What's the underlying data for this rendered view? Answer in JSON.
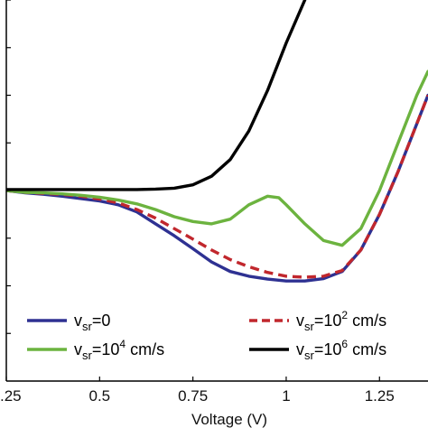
{
  "chart_data": {
    "type": "line",
    "title": "",
    "xlabel": "Voltage (V)",
    "ylabel": "",
    "xlim": [
      0.25,
      1.38
    ],
    "ylim": [
      0,
      8
    ],
    "x_ticks": [
      0.25,
      0.5,
      0.75,
      1,
      1.25
    ],
    "x_tick_labels": [
      ".25",
      "0.5",
      "0.75",
      "1",
      "1.25"
    ],
    "y_ticks": [
      1,
      2,
      3,
      4,
      5,
      6,
      7,
      8
    ],
    "grid": false,
    "legend_position": "bottom",
    "series": [
      {
        "name": "v_sr=0",
        "legend": {
          "base": "v",
          "sub": "sr",
          "rest": "=0",
          "sup": "",
          "unit": ""
        },
        "color": "#2e3192",
        "dash": "solid",
        "x": [
          0.25,
          0.3,
          0.35,
          0.4,
          0.45,
          0.5,
          0.55,
          0.6,
          0.65,
          0.7,
          0.75,
          0.8,
          0.85,
          0.9,
          0.95,
          1.0,
          1.05,
          1.1,
          1.15,
          1.2,
          1.25,
          1.3,
          1.35,
          1.38
        ],
        "y": [
          4.0,
          3.95,
          3.92,
          3.88,
          3.83,
          3.78,
          3.7,
          3.55,
          3.3,
          3.05,
          2.78,
          2.5,
          2.3,
          2.2,
          2.14,
          2.1,
          2.1,
          2.15,
          2.3,
          2.75,
          3.5,
          4.4,
          5.4,
          6.0
        ]
      },
      {
        "name": "v_sr=10^2 cm/s",
        "legend": {
          "base": "v",
          "sub": "sr",
          "rest": "=10",
          "sup": "2",
          "unit": " cm/s"
        },
        "color": "#c1272d",
        "dash": "dashed",
        "x": [
          0.25,
          0.3,
          0.35,
          0.4,
          0.45,
          0.5,
          0.55,
          0.6,
          0.65,
          0.7,
          0.75,
          0.8,
          0.85,
          0.9,
          0.95,
          1.0,
          1.05,
          1.1,
          1.15,
          1.2,
          1.25,
          1.3,
          1.35,
          1.38
        ],
        "y": [
          4.0,
          3.96,
          3.94,
          3.92,
          3.88,
          3.82,
          3.74,
          3.6,
          3.42,
          3.2,
          2.98,
          2.75,
          2.55,
          2.4,
          2.28,
          2.2,
          2.18,
          2.2,
          2.32,
          2.75,
          3.5,
          4.4,
          5.4,
          6.0
        ]
      },
      {
        "name": "v_sr=10^4 cm/s",
        "legend": {
          "base": "v",
          "sub": "sr",
          "rest": "=10",
          "sup": "4",
          "unit": " cm/s"
        },
        "color": "#6cb33f",
        "dash": "solid",
        "x": [
          0.25,
          0.3,
          0.35,
          0.4,
          0.45,
          0.5,
          0.55,
          0.6,
          0.65,
          0.7,
          0.75,
          0.8,
          0.85,
          0.9,
          0.95,
          0.98,
          1.0,
          1.05,
          1.1,
          1.15,
          1.2,
          1.25,
          1.3,
          1.35,
          1.38
        ],
        "y": [
          4.0,
          3.96,
          3.95,
          3.93,
          3.9,
          3.86,
          3.8,
          3.72,
          3.6,
          3.45,
          3.35,
          3.3,
          3.4,
          3.7,
          3.88,
          3.85,
          3.7,
          3.3,
          2.95,
          2.85,
          3.2,
          4.0,
          5.0,
          6.0,
          6.5
        ]
      },
      {
        "name": "v_sr=10^6 cm/s",
        "legend": {
          "base": "v",
          "sub": "sr",
          "rest": "=10",
          "sup": "6",
          "unit": " cm/s"
        },
        "color": "#000000",
        "dash": "solid",
        "x": [
          0.25,
          0.3,
          0.35,
          0.4,
          0.45,
          0.5,
          0.55,
          0.6,
          0.65,
          0.7,
          0.75,
          0.8,
          0.85,
          0.9,
          0.95,
          1.0,
          1.05
        ],
        "y": [
          4.02,
          4.02,
          4.02,
          4.02,
          4.02,
          4.02,
          4.02,
          4.02,
          4.03,
          4.05,
          4.12,
          4.3,
          4.65,
          5.25,
          6.1,
          7.1,
          8.0
        ]
      }
    ]
  }
}
